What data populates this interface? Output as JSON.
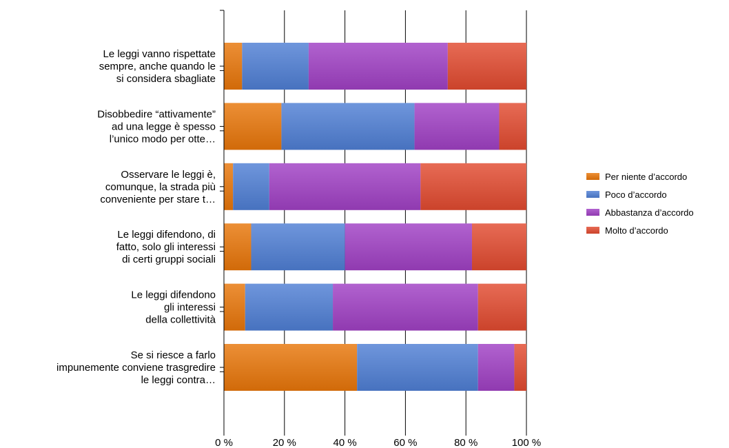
{
  "chart_data": {
    "type": "bar",
    "orientation": "horizontal",
    "stacked": "percent",
    "categories": [
      [
        "Le leggi vanno rispettate",
        "sempre, anche quando le",
        "si considera sbagliate"
      ],
      [
        "Disobbedire “attivamente”",
        "ad una legge è spesso",
        "l’unico modo per otte…"
      ],
      [
        "Osservare le leggi è,",
        "comunque, la strada più",
        "conveniente per stare t…"
      ],
      [
        "Le leggi difendono, di",
        "fatto, solo gli interessi",
        "di certi gruppi sociali"
      ],
      [
        "Le leggi difendono",
        "gli interessi",
        "della collettività"
      ],
      [
        "Se si riesce a farlo",
        "impunemente conviene trasgredire",
        "le leggi contra…"
      ]
    ],
    "series": [
      {
        "name": "Per niente d’accordo",
        "color": "#e8760a",
        "values": [
          6,
          19,
          3,
          9,
          7,
          44
        ]
      },
      {
        "name": "Poco d’accordo",
        "color": "#4f7fd4",
        "values": [
          22,
          44,
          12,
          31,
          29,
          40
        ]
      },
      {
        "name": "Abbastanza d’accordo",
        "color": "#a040c4",
        "values": [
          46,
          28,
          50,
          42,
          48,
          12
        ]
      },
      {
        "name": "Molto d’accordo",
        "color": "#e24a30",
        "values": [
          26,
          9,
          35,
          18,
          16,
          4
        ]
      }
    ],
    "xlim": [
      0,
      100
    ],
    "xticks": [
      "0 %",
      "20 %",
      "40 %",
      "60 %",
      "80 %",
      "100 %"
    ],
    "grid": "vertical",
    "legend_position": "right",
    "title": "",
    "xlabel": "",
    "ylabel": ""
  }
}
